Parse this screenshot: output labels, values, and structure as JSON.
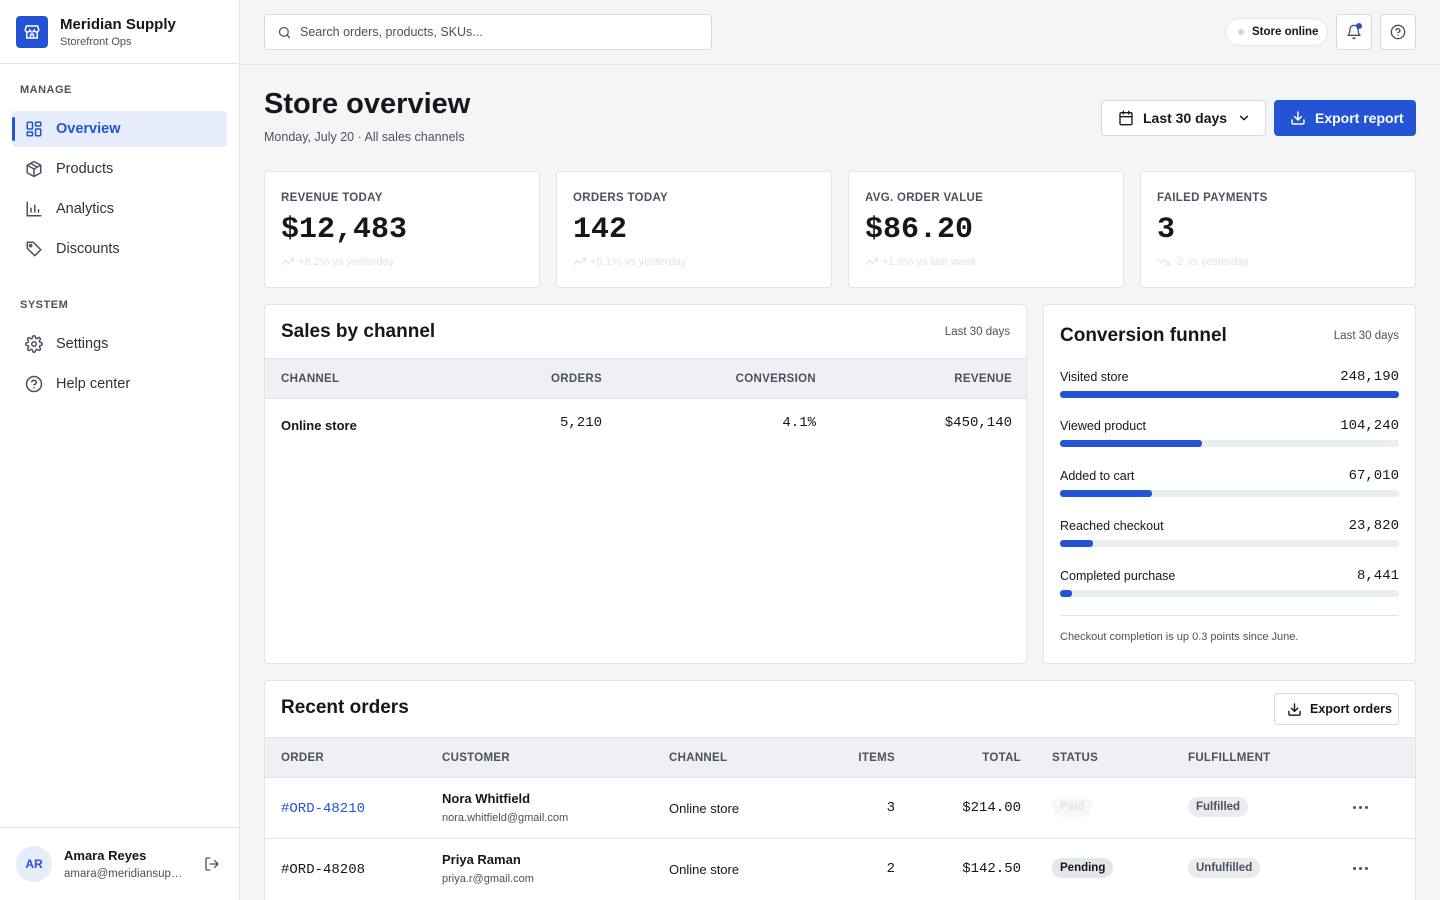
{
  "brand": {
    "name": "Meridian Supply",
    "sub": "Storefront Ops"
  },
  "sidebar": {
    "manage_label": "MANAGE",
    "system_label": "SYSTEM",
    "manage_items": [
      {
        "label": "Overview",
        "icon": "grid-icon",
        "active": true
      },
      {
        "label": "Products",
        "icon": "box-icon"
      },
      {
        "label": "Analytics",
        "icon": "bar-chart-icon"
      },
      {
        "label": "Discounts",
        "icon": "tag-icon"
      }
    ],
    "system_items": [
      {
        "label": "Settings",
        "icon": "gear-icon"
      },
      {
        "label": "Help center",
        "icon": "help-circle-icon"
      }
    ]
  },
  "user": {
    "initials": "AR",
    "name": "Amara Reyes",
    "email": "amara@meridiansupply.com"
  },
  "topbar": {
    "search_placeholder": "Search orders, products, SKUs...",
    "status": "Store online"
  },
  "header": {
    "title": "Store overview",
    "subtitle": "Monday, July 20 · All sales channels",
    "range": "Last 30 days",
    "export": "Export report"
  },
  "kpis": [
    {
      "label": "REVENUE TODAY",
      "value": "$12,483",
      "delta": "+8.2% vs yesterday",
      "trend": "up"
    },
    {
      "label": "ORDERS TODAY",
      "value": "142",
      "delta": "+5.1% vs yesterday",
      "trend": "up"
    },
    {
      "label": "AVG. ORDER VALUE",
      "value": "$86.20",
      "delta": "+1.9% vs last week",
      "trend": "up"
    },
    {
      "label": "FAILED PAYMENTS",
      "value": "3",
      "delta": "-2 vs yesterday",
      "trend": "down"
    }
  ],
  "sales_by_channel": {
    "title": "Sales by channel",
    "meta": "Last 30 days",
    "columns": [
      "CHANNEL",
      "ORDERS",
      "CONVERSION",
      "REVENUE"
    ],
    "rows": [
      {
        "channel": "Online store",
        "orders": "5,210",
        "conversion": "4.1%",
        "revenue": "$450,140"
      }
    ]
  },
  "funnel": {
    "title": "Conversion funnel",
    "meta": "Last 30 days",
    "steps": [
      {
        "label": "Visited store",
        "value": "248,190",
        "fraction": 1.0
      },
      {
        "label": "Viewed product",
        "value": "104,240",
        "fraction": 0.42
      },
      {
        "label": "Added to cart",
        "value": "67,010",
        "fraction": 0.27
      },
      {
        "label": "Reached checkout",
        "value": "23,820",
        "fraction": 0.096
      },
      {
        "label": "Completed purchase",
        "value": "8,441",
        "fraction": 0.034
      }
    ],
    "note": "Checkout completion is up 0.3 points since June."
  },
  "recent_orders": {
    "title": "Recent orders",
    "export": "Export orders",
    "columns": [
      "ORDER",
      "CUSTOMER",
      "CHANNEL",
      "ITEMS",
      "TOTAL",
      "STATUS",
      "FULFILLMENT"
    ],
    "rows": [
      {
        "id": "#ORD-48210",
        "name": "Nora Whitfield",
        "email": "nora.whitfield@gmail.com",
        "channel": "Online store",
        "items": "3",
        "total": "$214.00",
        "status": "Paid",
        "fulfillment": "Fulfilled"
      },
      {
        "id": "#ORD-48208",
        "name": "Priya Raman",
        "email": "priya.r@gmail.com",
        "channel": "Online store",
        "items": "2",
        "total": "$142.50",
        "status": "Pending",
        "fulfillment": "Unfulfilled"
      }
    ]
  },
  "colors": {
    "accent": "#2453d6",
    "background": "#f4f5f7",
    "text": "#15171c",
    "muted": "#4b5160"
  }
}
